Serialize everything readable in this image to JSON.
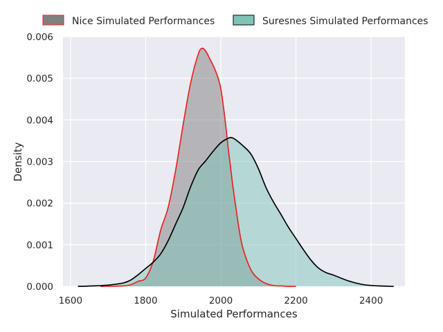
{
  "chart_data": {
    "type": "area",
    "xlabel": "Simulated Performances",
    "ylabel": "Density",
    "xlim": [
      1580,
      2490
    ],
    "ylim": [
      0,
      0.006
    ],
    "xticks": [
      1600,
      1800,
      2000,
      2200,
      2400
    ],
    "xtick_labels": [
      "1600",
      "1800",
      "2000",
      "2200",
      "2400"
    ],
    "yticks": [
      0,
      0.001,
      0.002,
      0.003,
      0.004,
      0.005,
      0.006
    ],
    "ytick_labels": [
      "0.000",
      "0.001",
      "0.002",
      "0.003",
      "0.004",
      "0.005",
      "0.006"
    ],
    "grid": true,
    "legend_position": "top-center",
    "series": [
      {
        "name": "Nice Simulated Performances",
        "fill_color": "#808080",
        "line_color": "#e8231f",
        "x": [
          1680,
          1740,
          1760,
          1780,
          1800,
          1820,
          1840,
          1860,
          1880,
          1900,
          1920,
          1940,
          1950,
          1960,
          1970,
          1980,
          1990,
          2000,
          2010,
          2020,
          2030,
          2040,
          2050,
          2060,
          2080,
          2100,
          2120,
          2140,
          2160,
          2180,
          2200
        ],
        "y": [
          0,
          1e-05,
          4e-05,
          0.00012,
          0.0002,
          0.0006,
          0.00135,
          0.0019,
          0.0028,
          0.0039,
          0.0049,
          0.00558,
          0.00572,
          0.00565,
          0.00548,
          0.0053,
          0.00508,
          0.00475,
          0.0041,
          0.0033,
          0.00255,
          0.0019,
          0.0013,
          0.00088,
          0.0004,
          0.00018,
          7e-05,
          2e-05,
          1e-05,
          0,
          0
        ]
      },
      {
        "name": "Suresnes Simulated Performances",
        "fill_color": "#7fc3b7",
        "line_color": "#000000",
        "x": [
          1620,
          1660,
          1700,
          1740,
          1760,
          1780,
          1800,
          1820,
          1840,
          1860,
          1880,
          1900,
          1920,
          1940,
          1960,
          1980,
          2000,
          2020,
          2030,
          2040,
          2060,
          2080,
          2100,
          2120,
          2140,
          2160,
          2180,
          2200,
          2220,
          2240,
          2260,
          2280,
          2300,
          2340,
          2380,
          2420,
          2460
        ],
        "y": [
          0,
          1e-05,
          3e-05,
          8e-05,
          0.00015,
          0.00028,
          0.00043,
          0.00058,
          0.00078,
          0.0011,
          0.0015,
          0.0019,
          0.0024,
          0.0028,
          0.00302,
          0.00325,
          0.00345,
          0.00356,
          0.00357,
          0.00352,
          0.00337,
          0.00318,
          0.00283,
          0.00238,
          0.00203,
          0.00173,
          0.00142,
          0.00115,
          0.00088,
          0.00063,
          0.00044,
          0.00033,
          0.00027,
          0.00013,
          4e-05,
          1e-05,
          0
        ]
      }
    ]
  }
}
